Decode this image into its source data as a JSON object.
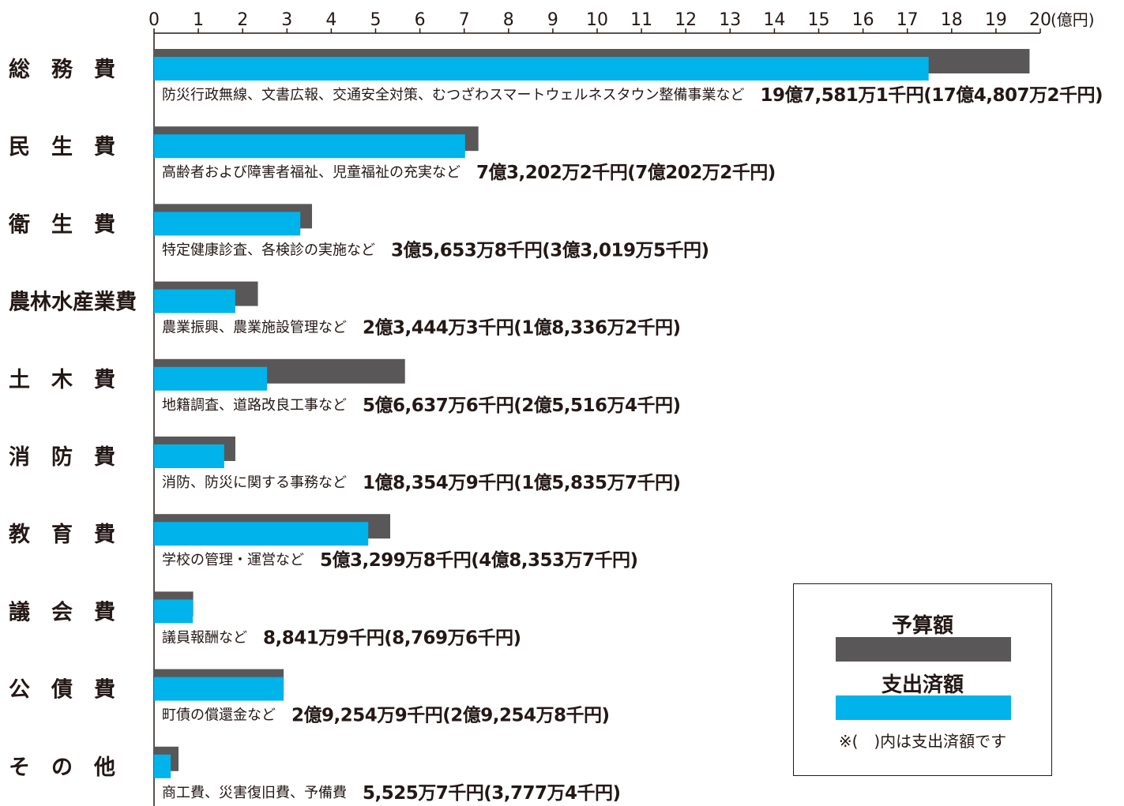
{
  "chart_data": {
    "type": "bar",
    "orientation": "horizontal",
    "unit": "(億円)",
    "xlim": [
      0,
      20
    ],
    "ticks": [
      "0",
      "1",
      "2",
      "3",
      "4",
      "5",
      "6",
      "7",
      "8",
      "9",
      "10",
      "11",
      "12",
      "13",
      "14",
      "15",
      "16",
      "17",
      "18",
      "19",
      "20"
    ],
    "legend_position": "bottom-right",
    "colors": {
      "budget": "#595757",
      "spent": "#00b3ea"
    },
    "series": [
      {
        "name": "予算額",
        "values": [
          19.7582,
          7.3202,
          3.5654,
          2.3444,
          5.6638,
          1.8355,
          5.33,
          0.8842,
          2.9255,
          0.5526
        ]
      },
      {
        "name": "支出済額",
        "values": [
          17.4807,
          7.0202,
          3.302,
          1.8336,
          2.5516,
          1.5836,
          4.8354,
          0.877,
          2.9255,
          0.3777
        ]
      }
    ],
    "categories": [
      {
        "label": "総　務　費",
        "desc": "防災行政無線、文書広報、交通安全対策、むつざわスマートウェルネスタウン整備事業など",
        "amount": "19億7,581万1千円(17億4,807万2千円)"
      },
      {
        "label": "民　生　費",
        "desc": "高齢者および障害者福祉、児童福祉の充実など",
        "amount": "7億3,202万2千円(7億202万2千円)"
      },
      {
        "label": "衛　生　費",
        "desc": "特定健康診査、各検診の実施など",
        "amount": "3億5,653万8千円(3億3,019万5千円)"
      },
      {
        "label": "農林水産業費",
        "desc": "農業振興、農業施設管理など",
        "amount": "2億3,444万3千円(1億8,336万2千円)"
      },
      {
        "label": "土　木　費",
        "desc": "地籍調査、道路改良工事など",
        "amount": "5億6,637万6千円(2億5,516万4千円)"
      },
      {
        "label": "消　防　費",
        "desc": "消防、防災に関する事務など",
        "amount": "1億8,354万9千円(1億5,835万7千円)"
      },
      {
        "label": "教　育　費",
        "desc": "学校の管理・運営など",
        "amount": "5億3,299万8千円(4億8,353万7千円)"
      },
      {
        "label": "議　会　費",
        "desc": "議員報酬など",
        "amount": "8,841万9千円(8,769万6千円)"
      },
      {
        "label": "公　債　費",
        "desc": "町債の償還金など",
        "amount": "2億9,254万9千円(2億9,254万8千円)"
      },
      {
        "label": "そ　の　他",
        "desc": "商工費、災害復旧費、予備費",
        "amount": "5,525万7千円(3,777万4千円)"
      }
    ]
  },
  "legend": {
    "budget_label": "予算額",
    "spent_label": "支出済額",
    "note": "※(　)内は支出済額です"
  }
}
